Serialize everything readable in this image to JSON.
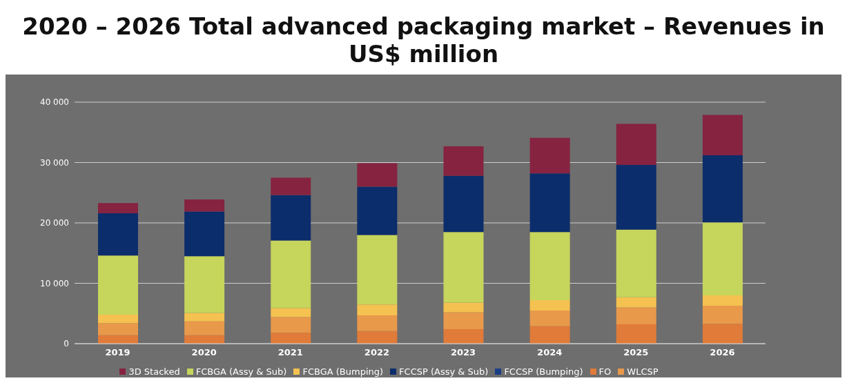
{
  "chart_data": {
    "type": "bar",
    "title": "2020 – 2026 Total advanced packaging market – Revenues in US$ million",
    "categories": [
      "2019",
      "2020",
      "2021",
      "2022",
      "2023",
      "2024",
      "2025",
      "2026"
    ],
    "stacked": true,
    "ylim": [
      0,
      40000
    ],
    "yticks": [
      0,
      {
        "value": 10000,
        "label": "10 000"
      },
      {
        "value": 20000,
        "label": "20 000"
      },
      {
        "value": 30000,
        "label": "30 000"
      },
      {
        "value": 40000,
        "label": "40 000"
      }
    ],
    "grid": "y",
    "legend": "bottom",
    "series": [
      {
        "name": "FO",
        "color": "#e07b39",
        "values": [
          1400,
          1400,
          1800,
          2100,
          2400,
          2900,
          3200,
          3300
        ]
      },
      {
        "name": "WLCSP",
        "color": "#e8994a",
        "values": [
          2000,
          2300,
          2600,
          2600,
          2800,
          2600,
          2800,
          3000
        ]
      },
      {
        "name": "FCBGA (Bumping)",
        "color": "#f5c150",
        "values": [
          1400,
          1400,
          1500,
          1800,
          1600,
          1700,
          1700,
          1700
        ]
      },
      {
        "name": "FCBGA (Assy & Sub)",
        "color": "#c6d55c",
        "values": [
          9800,
          9400,
          11200,
          11500,
          11700,
          11300,
          11200,
          12100
        ]
      },
      {
        "name": "FCCSP (Bumping)",
        "color": "#1b3f85",
        "values": [
          null,
          null,
          null,
          null,
          null,
          null,
          null,
          null
        ]
      },
      {
        "name": "FCCSP (Assy & Sub)",
        "color": "#0c2d6b",
        "values": [
          7000,
          7400,
          7500,
          8000,
          9300,
          9700,
          10700,
          11100
        ]
      },
      {
        "name": "3D Stacked",
        "color": "#862340",
        "values": [
          1700,
          2000,
          2900,
          3900,
          4900,
          5900,
          6800,
          6700
        ]
      }
    ]
  }
}
